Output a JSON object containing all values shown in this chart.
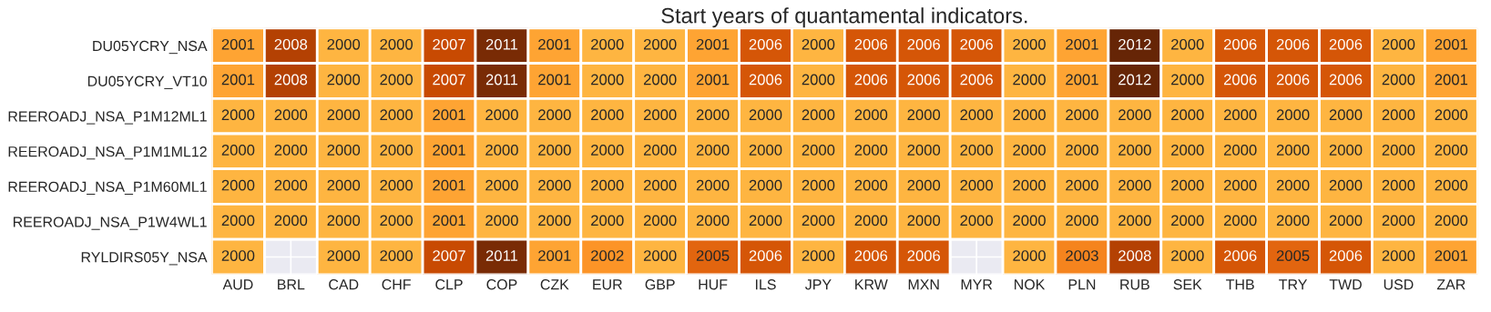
{
  "chart_data": {
    "type": "heatmap",
    "title": "Start years of quantamental indicators.",
    "categories": [
      "AUD",
      "BRL",
      "CAD",
      "CHF",
      "CLP",
      "COP",
      "CZK",
      "EUR",
      "GBP",
      "HUF",
      "ILS",
      "JPY",
      "KRW",
      "MXN",
      "MYR",
      "NOK",
      "PLN",
      "RUB",
      "SEK",
      "THB",
      "TRY",
      "TWD",
      "USD",
      "ZAR"
    ],
    "y_categories": [
      "DU05YCRY_NSA",
      "DU05YCRY_VT10",
      "REEROADJ_NSA_P1M12ML1",
      "REEROADJ_NSA_P1M1ML12",
      "REEROADJ_NSA_P1M60ML1",
      "REEROADJ_NSA_P1W4WL1",
      "RYLDIRS05Y_NSA"
    ],
    "cells": [
      [
        2001,
        2008,
        2000,
        2000,
        2007,
        2011,
        2001,
        2000,
        2000,
        2001,
        2006,
        2000,
        2006,
        2006,
        2006,
        2000,
        2001,
        2012,
        2000,
        2006,
        2006,
        2006,
        2000,
        2001
      ],
      [
        2001,
        2008,
        2000,
        2000,
        2007,
        2011,
        2001,
        2000,
        2000,
        2001,
        2006,
        2000,
        2006,
        2006,
        2006,
        2000,
        2001,
        2012,
        2000,
        2006,
        2006,
        2006,
        2000,
        2001
      ],
      [
        2000,
        2000,
        2000,
        2000,
        2001,
        2000,
        2000,
        2000,
        2000,
        2000,
        2000,
        2000,
        2000,
        2000,
        2000,
        2000,
        2000,
        2000,
        2000,
        2000,
        2000,
        2000,
        2000,
        2000
      ],
      [
        2000,
        2000,
        2000,
        2000,
        2001,
        2000,
        2000,
        2000,
        2000,
        2000,
        2000,
        2000,
        2000,
        2000,
        2000,
        2000,
        2000,
        2000,
        2000,
        2000,
        2000,
        2000,
        2000,
        2000
      ],
      [
        2000,
        2000,
        2000,
        2000,
        2001,
        2000,
        2000,
        2000,
        2000,
        2000,
        2000,
        2000,
        2000,
        2000,
        2000,
        2000,
        2000,
        2000,
        2000,
        2000,
        2000,
        2000,
        2000,
        2000
      ],
      [
        2000,
        2000,
        2000,
        2000,
        2001,
        2000,
        2000,
        2000,
        2000,
        2000,
        2000,
        2000,
        2000,
        2000,
        2000,
        2000,
        2000,
        2000,
        2000,
        2000,
        2000,
        2000,
        2000,
        2000
      ],
      [
        2000,
        null,
        2000,
        2000,
        2007,
        2011,
        2001,
        2002,
        2000,
        2005,
        2006,
        2000,
        2006,
        2006,
        null,
        2000,
        2003,
        2008,
        2000,
        2006,
        2005,
        2006,
        2000,
        2001
      ]
    ],
    "data_labels": true,
    "grid": true
  }
}
